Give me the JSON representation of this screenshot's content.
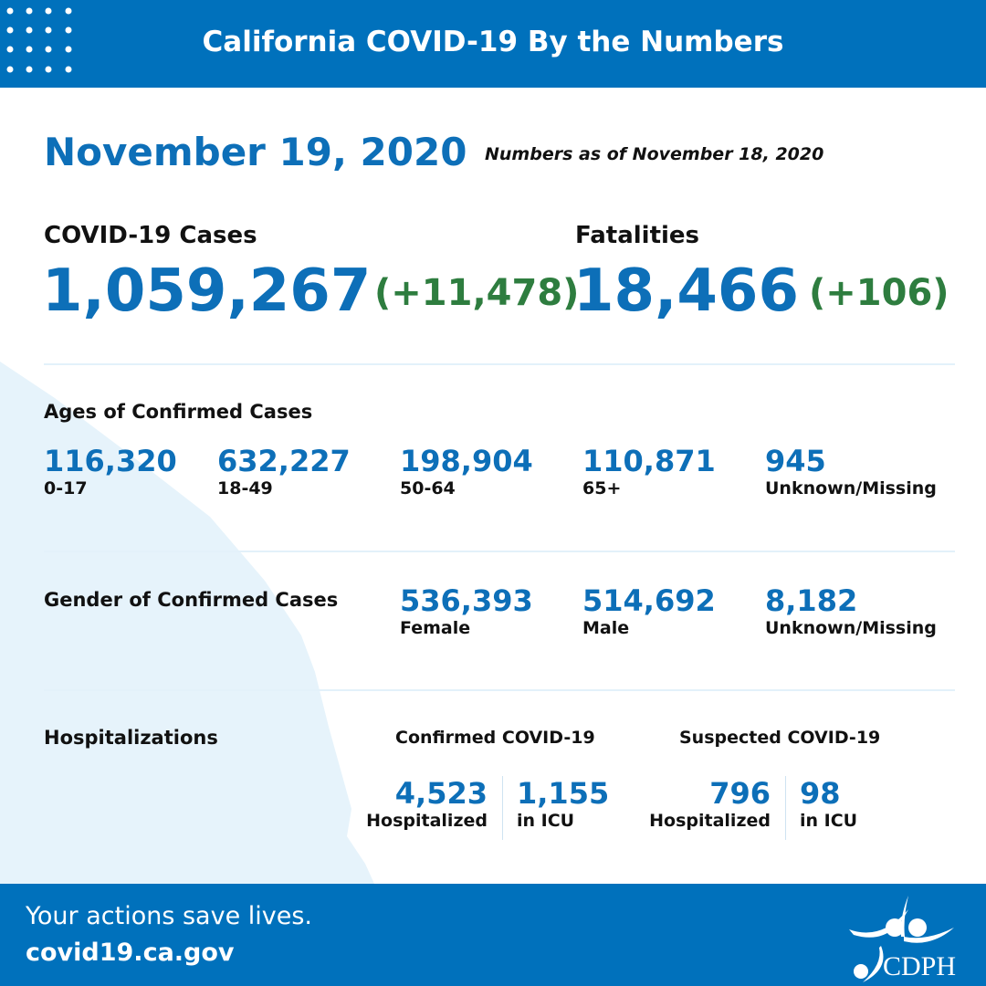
{
  "header": {
    "title": "California COVID-19 By the Numbers"
  },
  "date": "November 19, 2020",
  "as_of": "Numbers as of November 18, 2020",
  "cases": {
    "label": "COVID-19 Cases",
    "total": "1,059,267",
    "change": "(+11,478)"
  },
  "fatalities": {
    "label": "Fatalities",
    "total": "18,466",
    "change": "(+106)"
  },
  "ages": {
    "label": "Ages of Confirmed Cases",
    "items": [
      {
        "value": "116,320",
        "group": "0-17"
      },
      {
        "value": "632,227",
        "group": "18-49"
      },
      {
        "value": "198,904",
        "group": "50-64"
      },
      {
        "value": "110,871",
        "group": "65+"
      },
      {
        "value": "945",
        "group": "Unknown/Missing"
      }
    ]
  },
  "gender": {
    "label": "Gender of Confirmed Cases",
    "items": [
      {
        "value": "536,393",
        "group": "Female"
      },
      {
        "value": "514,692",
        "group": "Male"
      },
      {
        "value": "8,182",
        "group": "Unknown/Missing"
      }
    ]
  },
  "hosp": {
    "label": "Hospitalizations",
    "confirmed": {
      "label": "Confirmed COVID-19",
      "hospitalized": "4,523",
      "hospitalized_label": "Hospitalized",
      "icu": "1,155",
      "icu_label": "in ICU"
    },
    "suspected": {
      "label": "Suspected COVID-19",
      "hospitalized": "796",
      "hospitalized_label": "Hospitalized",
      "icu": "98",
      "icu_label": "in ICU"
    }
  },
  "footer": {
    "tagline": "Your actions save lives.",
    "url": "covid19.ca.gov",
    "logo_text": "CDPH"
  },
  "colors": {
    "brand_blue": "#0071bc",
    "increase_green": "#2e7d3f",
    "map_tint": "#e6f3fb"
  }
}
